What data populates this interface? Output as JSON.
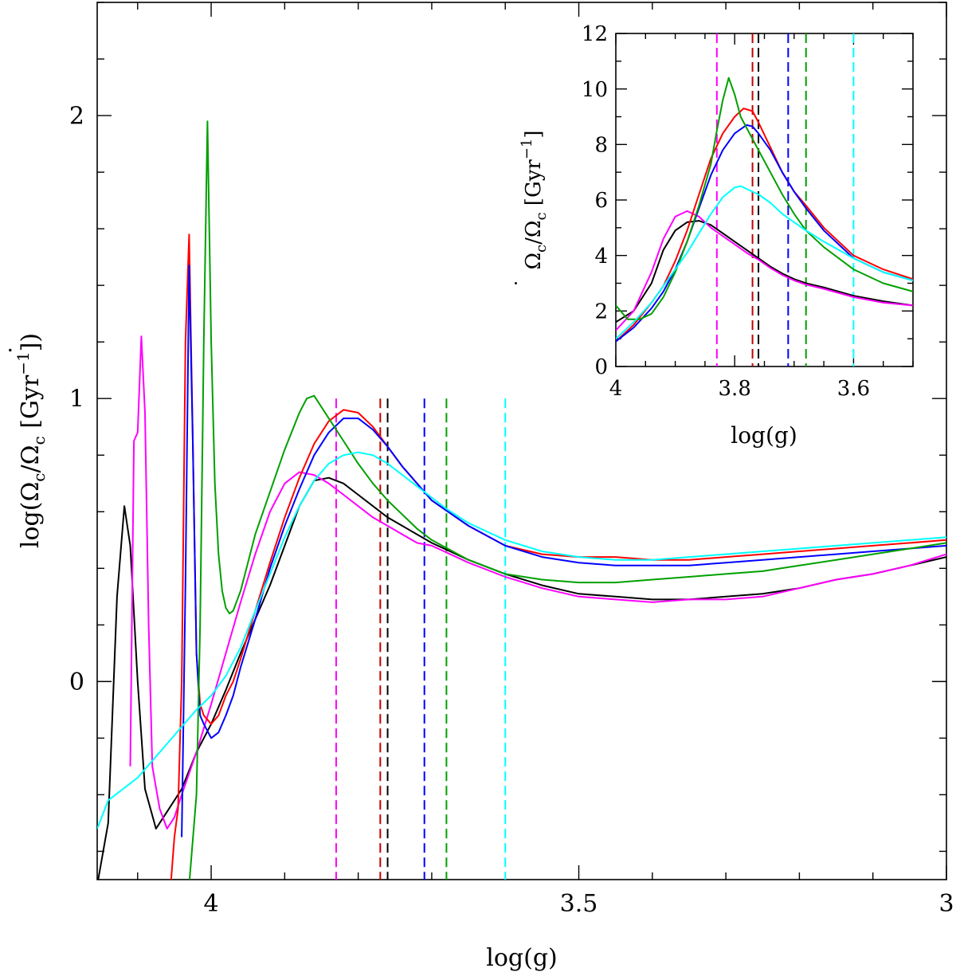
{
  "chart_data": [
    {
      "type": "line",
      "xlabel": "log(g)",
      "ylabel_main": "log(Ω",
      "ylabel_unit": "[Gyr",
      "xlim": [
        4.155,
        3.0
      ],
      "ylim": [
        -0.7,
        2.4
      ],
      "x_ticks": [
        4,
        3.5,
        3
      ],
      "x_tick_labels": [
        "4",
        "3.5",
        "3"
      ],
      "y_ticks": [
        0,
        1,
        2
      ],
      "y_tick_labels": [
        "0",
        "1",
        "2"
      ],
      "series": [
        {
          "color": "#000000",
          "x": [
            4.155,
            4.14,
            4.128,
            4.118,
            4.11,
            4.1,
            4.09,
            4.075,
            4.06,
            4.04,
            4.02,
            4.0,
            3.98,
            3.96,
            3.94,
            3.92,
            3.9,
            3.88,
            3.86,
            3.84,
            3.82,
            3.8,
            3.78,
            3.76,
            3.74,
            3.72,
            3.7,
            3.65,
            3.6,
            3.55,
            3.5,
            3.45,
            3.4,
            3.35,
            3.3,
            3.25,
            3.2,
            3.15,
            3.1,
            3.05,
            3.0
          ],
          "y": [
            -0.72,
            -0.5,
            0.3,
            0.62,
            0.48,
            0.0,
            -0.38,
            -0.52,
            -0.46,
            -0.38,
            -0.25,
            -0.15,
            -0.03,
            0.1,
            0.22,
            0.34,
            0.48,
            0.62,
            0.71,
            0.72,
            0.7,
            0.66,
            0.62,
            0.58,
            0.55,
            0.52,
            0.49,
            0.43,
            0.38,
            0.34,
            0.31,
            0.3,
            0.29,
            0.29,
            0.3,
            0.31,
            0.33,
            0.36,
            0.38,
            0.41,
            0.44
          ]
        },
        {
          "color": "#ff00ff",
          "x": [
            4.11,
            4.105,
            4.1,
            4.095,
            4.09,
            4.085,
            4.08,
            4.07,
            4.06,
            4.05,
            4.04,
            4.02,
            4.0,
            3.98,
            3.96,
            3.94,
            3.92,
            3.9,
            3.88,
            3.86,
            3.84,
            3.82,
            3.8,
            3.78,
            3.76,
            3.74,
            3.72,
            3.7,
            3.65,
            3.6,
            3.55,
            3.5,
            3.45,
            3.4,
            3.35,
            3.3,
            3.25,
            3.2,
            3.15,
            3.1,
            3.05,
            3.0
          ],
          "y": [
            -0.3,
            0.85,
            0.88,
            1.22,
            0.95,
            0.2,
            -0.3,
            -0.45,
            -0.52,
            -0.48,
            -0.4,
            -0.25,
            -0.08,
            0.1,
            0.28,
            0.45,
            0.6,
            0.7,
            0.74,
            0.73,
            0.7,
            0.66,
            0.62,
            0.58,
            0.55,
            0.52,
            0.49,
            0.48,
            0.42,
            0.37,
            0.33,
            0.3,
            0.29,
            0.28,
            0.29,
            0.29,
            0.3,
            0.33,
            0.36,
            0.38,
            0.41,
            0.45
          ]
        },
        {
          "color": "#ff0000",
          "x": [
            4.055,
            4.05,
            4.045,
            4.04,
            4.035,
            4.03,
            4.025,
            4.02,
            4.015,
            4.01,
            4.0,
            3.99,
            3.98,
            3.97,
            3.96,
            3.94,
            3.92,
            3.9,
            3.88,
            3.86,
            3.84,
            3.82,
            3.8,
            3.78,
            3.76,
            3.74,
            3.72,
            3.7,
            3.65,
            3.6,
            3.55,
            3.5,
            3.45,
            3.4,
            3.35,
            3.3,
            3.25,
            3.2,
            3.15,
            3.1,
            3.05,
            3.0
          ],
          "y": [
            -0.72,
            -0.55,
            -0.45,
            0.0,
            1.2,
            1.58,
            0.85,
            0.1,
            -0.08,
            -0.12,
            -0.15,
            -0.12,
            -0.05,
            0.0,
            0.08,
            0.25,
            0.42,
            0.58,
            0.72,
            0.84,
            0.92,
            0.96,
            0.95,
            0.9,
            0.83,
            0.76,
            0.7,
            0.64,
            0.55,
            0.48,
            0.45,
            0.44,
            0.44,
            0.43,
            0.43,
            0.44,
            0.45,
            0.46,
            0.47,
            0.48,
            0.49,
            0.5
          ]
        },
        {
          "color": "#0000ff",
          "x": [
            4.04,
            4.035,
            4.03,
            4.025,
            4.02,
            4.015,
            4.01,
            4.0,
            3.99,
            3.98,
            3.97,
            3.96,
            3.94,
            3.92,
            3.9,
            3.88,
            3.86,
            3.84,
            3.82,
            3.8,
            3.78,
            3.76,
            3.74,
            3.72,
            3.7,
            3.65,
            3.6,
            3.55,
            3.5,
            3.45,
            3.4,
            3.35,
            3.3,
            3.25,
            3.2,
            3.15,
            3.1,
            3.05,
            3.0
          ],
          "y": [
            -0.55,
            0.35,
            1.47,
            0.85,
            0.1,
            -0.12,
            -0.15,
            -0.2,
            -0.18,
            -0.12,
            -0.05,
            0.05,
            0.22,
            0.4,
            0.55,
            0.68,
            0.8,
            0.88,
            0.93,
            0.93,
            0.89,
            0.83,
            0.76,
            0.7,
            0.64,
            0.55,
            0.48,
            0.44,
            0.42,
            0.41,
            0.41,
            0.41,
            0.42,
            0.43,
            0.44,
            0.45,
            0.46,
            0.47,
            0.48
          ]
        },
        {
          "color": "#00a000",
          "x": [
            4.03,
            4.02,
            4.015,
            4.01,
            4.005,
            4.0,
            3.995,
            3.99,
            3.985,
            3.98,
            3.975,
            3.97,
            3.96,
            3.95,
            3.94,
            3.92,
            3.9,
            3.88,
            3.87,
            3.86,
            3.84,
            3.82,
            3.8,
            3.78,
            3.76,
            3.74,
            3.72,
            3.7,
            3.65,
            3.6,
            3.55,
            3.5,
            3.45,
            3.4,
            3.35,
            3.3,
            3.25,
            3.2,
            3.15,
            3.1,
            3.05,
            3.0
          ],
          "y": [
            -0.72,
            -0.4,
            0.2,
            1.2,
            1.98,
            1.2,
            0.7,
            0.45,
            0.32,
            0.26,
            0.24,
            0.25,
            0.32,
            0.42,
            0.52,
            0.67,
            0.82,
            0.95,
            1.0,
            1.01,
            0.93,
            0.85,
            0.77,
            0.7,
            0.64,
            0.59,
            0.54,
            0.5,
            0.43,
            0.38,
            0.36,
            0.35,
            0.35,
            0.36,
            0.37,
            0.38,
            0.39,
            0.41,
            0.43,
            0.45,
            0.47,
            0.49
          ]
        },
        {
          "color": "#00ffff",
          "x": [
            4.155,
            4.14,
            4.12,
            4.1,
            4.08,
            4.06,
            4.04,
            4.02,
            4.0,
            3.98,
            3.96,
            3.94,
            3.92,
            3.9,
            3.88,
            3.86,
            3.84,
            3.82,
            3.8,
            3.78,
            3.76,
            3.74,
            3.72,
            3.7,
            3.68,
            3.65,
            3.6,
            3.55,
            3.5,
            3.45,
            3.4,
            3.35,
            3.3,
            3.25,
            3.2,
            3.15,
            3.1,
            3.05,
            3.0
          ],
          "y": [
            -0.52,
            -0.42,
            -0.38,
            -0.34,
            -0.28,
            -0.22,
            -0.16,
            -0.1,
            -0.05,
            0.02,
            0.12,
            0.25,
            0.38,
            0.51,
            0.62,
            0.71,
            0.77,
            0.8,
            0.81,
            0.8,
            0.77,
            0.73,
            0.69,
            0.65,
            0.61,
            0.56,
            0.5,
            0.46,
            0.44,
            0.43,
            0.43,
            0.44,
            0.45,
            0.46,
            0.47,
            0.48,
            0.49,
            0.5,
            0.51
          ]
        }
      ],
      "vlines": [
        {
          "x": 3.83,
          "color": "#ff00ff"
        },
        {
          "x": 3.77,
          "color": "#c00000"
        },
        {
          "x": 3.76,
          "color": "#000000"
        },
        {
          "x": 3.71,
          "color": "#0000ff"
        },
        {
          "x": 3.68,
          "color": "#00a000"
        },
        {
          "x": 3.6,
          "color": "#00ffff"
        }
      ]
    },
    {
      "type": "line",
      "inset": true,
      "xlabel": "log(g)",
      "ylabel_main": "Ω",
      "ylabel_unit": "[Gyr",
      "xlim": [
        4.0,
        3.5
      ],
      "ylim": [
        0,
        12
      ],
      "x_ticks": [
        4,
        3.8,
        3.6
      ],
      "x_tick_labels": [
        "4",
        "3.8",
        "3.6"
      ],
      "y_ticks": [
        0,
        2,
        4,
        6,
        8,
        10,
        12
      ],
      "y_tick_labels": [
        "0",
        "2",
        "4",
        "6",
        "8",
        "10",
        "12"
      ],
      "series": [
        {
          "color": "#000000",
          "x": [
            4.0,
            3.97,
            3.94,
            3.92,
            3.9,
            3.88,
            3.86,
            3.84,
            3.82,
            3.8,
            3.78,
            3.76,
            3.74,
            3.72,
            3.7,
            3.68,
            3.65,
            3.6,
            3.55,
            3.5
          ],
          "y": [
            1.6,
            2.0,
            3.0,
            4.2,
            4.9,
            5.2,
            5.25,
            5.1,
            4.8,
            4.5,
            4.2,
            3.9,
            3.6,
            3.35,
            3.15,
            3.0,
            2.85,
            2.55,
            2.35,
            2.2
          ]
        },
        {
          "color": "#ff00ff",
          "x": [
            4.0,
            3.97,
            3.94,
            3.92,
            3.9,
            3.88,
            3.86,
            3.84,
            3.82,
            3.8,
            3.78,
            3.76,
            3.74,
            3.72,
            3.7,
            3.68,
            3.65,
            3.6,
            3.55,
            3.5
          ],
          "y": [
            1.3,
            2.0,
            3.4,
            4.6,
            5.4,
            5.6,
            5.4,
            5.0,
            4.7,
            4.4,
            4.1,
            3.85,
            3.55,
            3.3,
            3.1,
            2.95,
            2.8,
            2.5,
            2.3,
            2.2
          ]
        },
        {
          "color": "#ff0000",
          "x": [
            4.0,
            3.97,
            3.94,
            3.92,
            3.9,
            3.88,
            3.86,
            3.84,
            3.82,
            3.8,
            3.785,
            3.77,
            3.76,
            3.74,
            3.72,
            3.7,
            3.68,
            3.65,
            3.6,
            3.55,
            3.5
          ],
          "y": [
            0.9,
            1.5,
            2.3,
            2.9,
            3.8,
            4.9,
            6.2,
            7.5,
            8.4,
            9.0,
            9.3,
            9.2,
            8.8,
            7.9,
            7.0,
            6.3,
            5.8,
            5.0,
            4.0,
            3.5,
            3.15
          ]
        },
        {
          "color": "#0000ff",
          "x": [
            4.0,
            3.97,
            3.94,
            3.92,
            3.9,
            3.88,
            3.86,
            3.84,
            3.82,
            3.8,
            3.78,
            3.77,
            3.76,
            3.74,
            3.72,
            3.7,
            3.68,
            3.65,
            3.6,
            3.55,
            3.5
          ],
          "y": [
            0.9,
            1.4,
            2.1,
            2.7,
            3.5,
            4.5,
            5.7,
            6.9,
            7.8,
            8.4,
            8.7,
            8.65,
            8.4,
            7.8,
            7.0,
            6.3,
            5.7,
            4.9,
            3.9,
            3.4,
            3.1
          ]
        },
        {
          "color": "#00a000",
          "x": [
            4.0,
            3.98,
            3.96,
            3.94,
            3.92,
            3.9,
            3.88,
            3.86,
            3.84,
            3.83,
            3.82,
            3.81,
            3.8,
            3.79,
            3.78,
            3.76,
            3.74,
            3.72,
            3.7,
            3.68,
            3.65,
            3.6,
            3.55,
            3.5
          ],
          "y": [
            2.2,
            1.7,
            1.7,
            1.9,
            2.5,
            3.4,
            4.5,
            5.8,
            7.3,
            8.5,
            9.6,
            10.4,
            9.8,
            9.0,
            8.6,
            7.8,
            7.0,
            6.2,
            5.5,
            4.9,
            4.3,
            3.5,
            3.0,
            2.7
          ]
        },
        {
          "color": "#00ffff",
          "x": [
            4.0,
            3.97,
            3.94,
            3.92,
            3.9,
            3.88,
            3.86,
            3.84,
            3.82,
            3.8,
            3.79,
            3.78,
            3.76,
            3.74,
            3.72,
            3.7,
            3.68,
            3.65,
            3.6,
            3.55,
            3.5
          ],
          "y": [
            1.0,
            1.6,
            2.3,
            2.9,
            3.5,
            4.1,
            4.8,
            5.5,
            6.1,
            6.45,
            6.5,
            6.4,
            6.2,
            5.9,
            5.5,
            5.2,
            4.9,
            4.5,
            3.9,
            3.4,
            3.1
          ]
        }
      ],
      "vlines": [
        {
          "x": 3.83,
          "color": "#ff00ff"
        },
        {
          "x": 3.77,
          "color": "#c00000"
        },
        {
          "x": 3.76,
          "color": "#000000"
        },
        {
          "x": 3.71,
          "color": "#0000ff"
        },
        {
          "x": 3.68,
          "color": "#00a000"
        },
        {
          "x": 3.6,
          "color": "#00ffff"
        }
      ]
    }
  ]
}
